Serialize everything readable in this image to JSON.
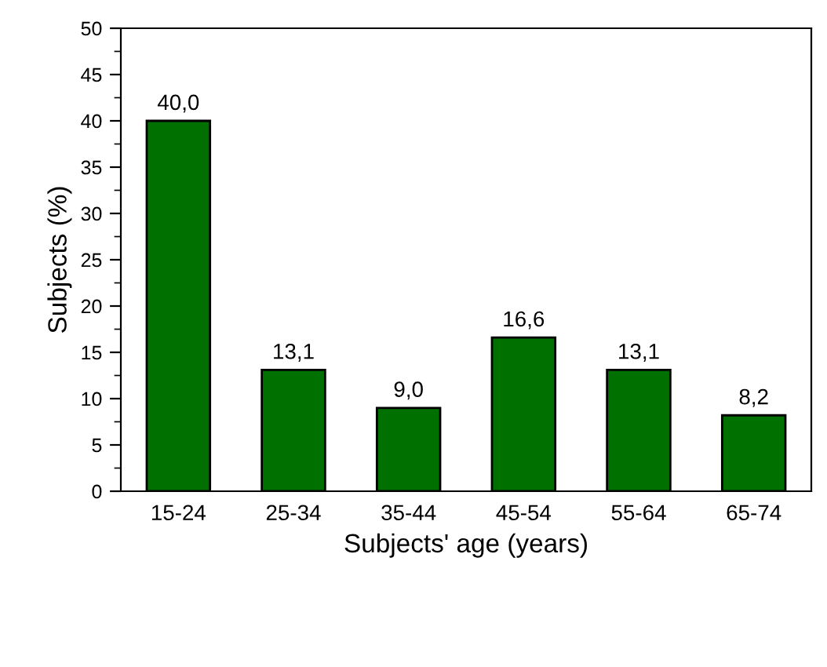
{
  "chart_data": {
    "type": "bar",
    "xlabel": "Subjects' age (years)",
    "ylabel": "Subjects (%)",
    "categories": [
      "15-24",
      "25-34",
      "35-44",
      "45-54",
      "55-64",
      "65-74"
    ],
    "values": [
      40.0,
      13.1,
      9.0,
      16.6,
      13.1,
      8.2
    ],
    "value_labels": [
      "40,0",
      "13,1",
      "9,0",
      "16,6",
      "13,1",
      "8,2"
    ],
    "color": "#007000",
    "ylim": [
      0,
      50
    ],
    "yticks": [
      0,
      5,
      10,
      15,
      20,
      25,
      30,
      35,
      40,
      45,
      50
    ],
    "grid": false,
    "legend": false
  }
}
